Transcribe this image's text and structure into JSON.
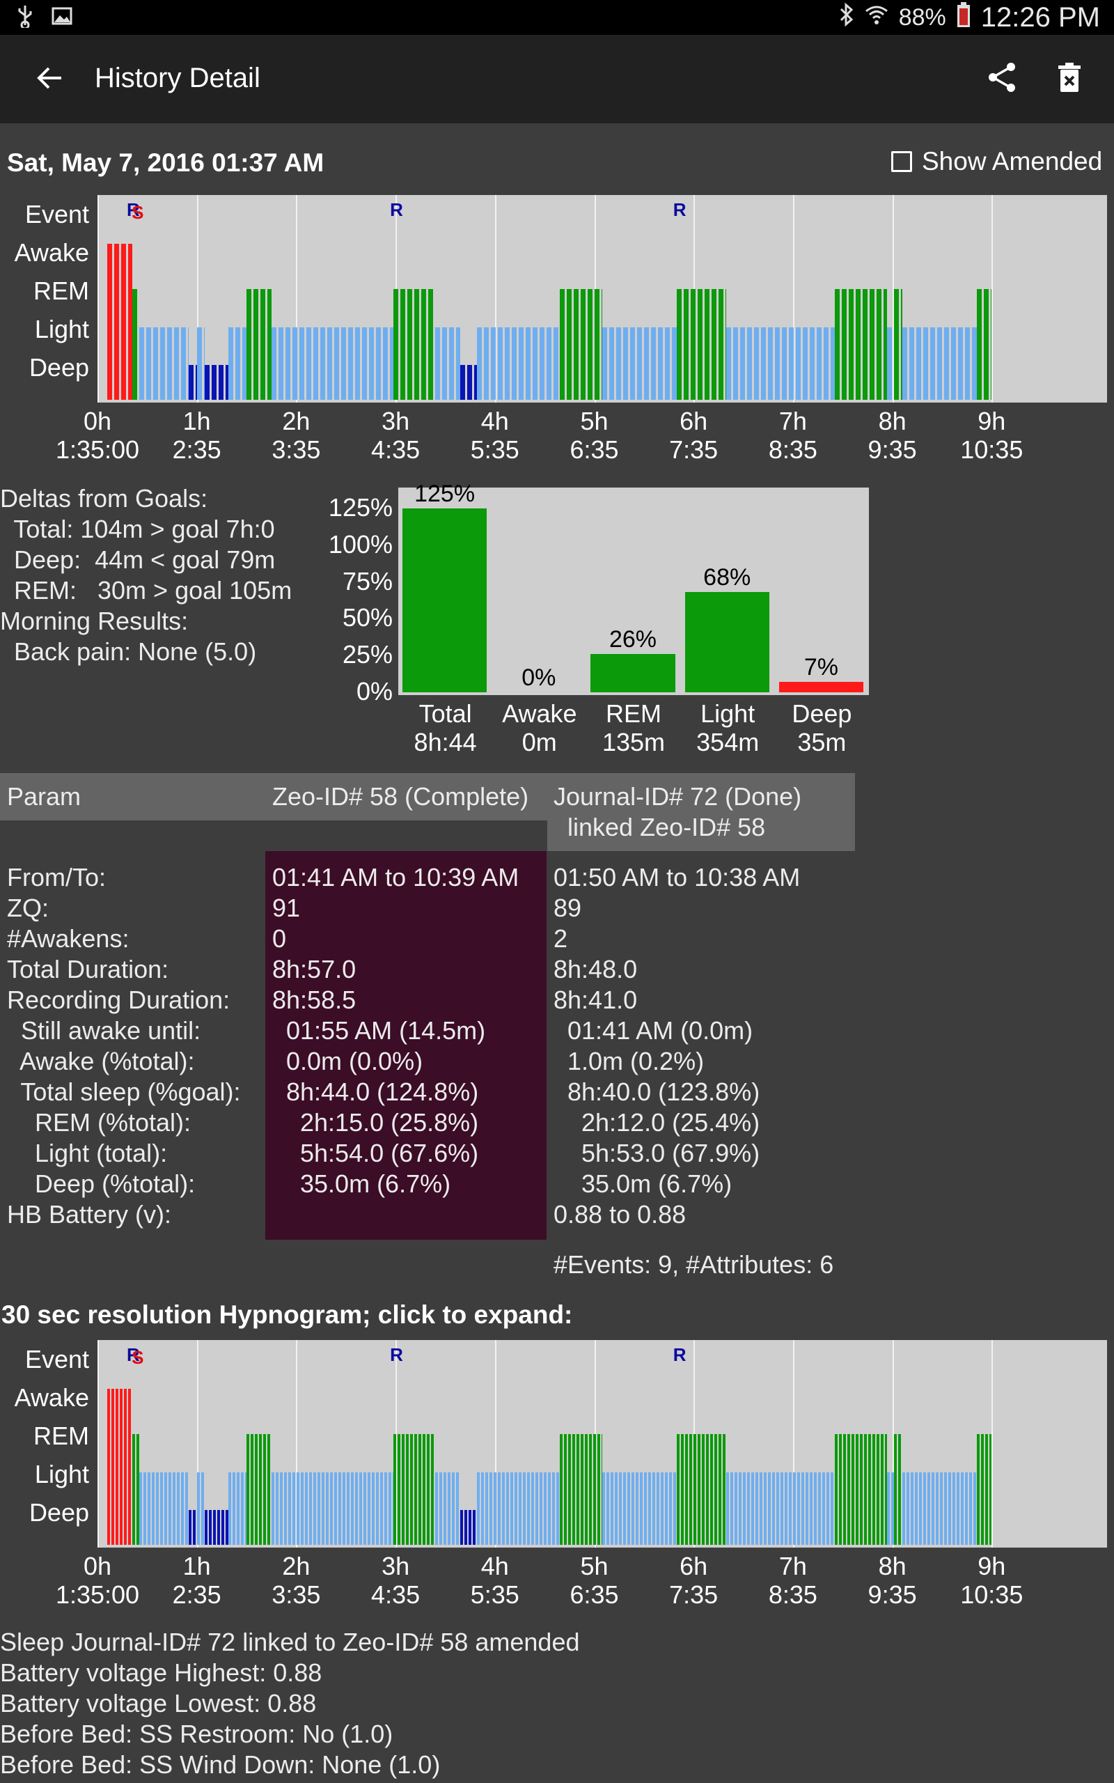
{
  "status_bar": {
    "battery": "88%",
    "time": "12:26 PM",
    "icons": [
      "usb-icon",
      "image-icon",
      "bluetooth-icon",
      "wifi-icon",
      "battery-icon"
    ]
  },
  "app_bar": {
    "title": "History Detail",
    "icons": [
      "back-arrow-icon",
      "share-icon",
      "delete-icon"
    ]
  },
  "header": {
    "date": "Sat, May 7, 2016 01:37 AM",
    "show_amended_label": "Show Amended",
    "show_amended_checked": false
  },
  "hypnogram_rows": [
    "Event",
    "Awake",
    "REM",
    "Light",
    "Deep"
  ],
  "hypnogram_ticks": [
    {
      "h": "0h",
      "t": "1:35:00"
    },
    {
      "h": "1h",
      "t": "2:35"
    },
    {
      "h": "2h",
      "t": "3:35"
    },
    {
      "h": "3h",
      "t": "4:35"
    },
    {
      "h": "4h",
      "t": "5:35"
    },
    {
      "h": "5h",
      "t": "6:35"
    },
    {
      "h": "6h",
      "t": "7:35"
    },
    {
      "h": "7h",
      "t": "8:35"
    },
    {
      "h": "8h",
      "t": "9:35"
    },
    {
      "h": "9h",
      "t": "10:35"
    }
  ],
  "hypnogram_events": [
    {
      "label": "R",
      "color": "#0a0aa0",
      "hour": 0.35
    },
    {
      "label": "S",
      "color": "#e01010",
      "hour": 0.4
    },
    {
      "label": "R",
      "color": "#0a0aa0",
      "hour": 3.0
    },
    {
      "label": "R",
      "color": "#0a0aa0",
      "hour": 5.85
    }
  ],
  "stage_colors": {
    "Awake": "#ff1a1a",
    "REM": "#0a9a0a",
    "Light": "#6eaef0",
    "Deep": "#0a13b4"
  },
  "hypnogram_stages": [
    [
      "Awake",
      0.1,
      0.35
    ],
    [
      "REM",
      0.35,
      0.42
    ],
    [
      "Light",
      0.42,
      0.92
    ],
    [
      "Deep",
      0.92,
      1.0
    ],
    [
      "Light",
      1.0,
      1.08
    ],
    [
      "Deep",
      1.08,
      1.32
    ],
    [
      "Light",
      1.32,
      1.5
    ],
    [
      "REM",
      1.5,
      1.75
    ],
    [
      "Light",
      1.75,
      2.98
    ],
    [
      "REM",
      2.98,
      3.4
    ],
    [
      "Light",
      3.4,
      3.65
    ],
    [
      "Deep",
      3.65,
      3.82
    ],
    [
      "Light",
      3.82,
      4.65
    ],
    [
      "REM",
      4.65,
      5.08
    ],
    [
      "Light",
      5.08,
      5.83
    ],
    [
      "REM",
      5.83,
      6.33
    ],
    [
      "Light",
      6.33,
      7.42
    ],
    [
      "REM",
      7.42,
      7.95
    ],
    [
      "Light",
      7.95,
      8.02
    ],
    [
      "REM",
      8.02,
      8.1
    ],
    [
      "Light",
      8.1,
      8.85
    ],
    [
      "REM",
      8.85,
      9.0
    ]
  ],
  "deltas": {
    "lines": [
      "Deltas from Goals:",
      "  Total: 104m > goal 7h:0",
      "  Deep:  44m < goal 79m",
      "  REM:   30m > goal 105m",
      "Morning Results:",
      "  Back pain: None (5.0)"
    ]
  },
  "chart_data": {
    "type": "bar",
    "categories": [
      "Total",
      "Awake",
      "REM",
      "Light",
      "Deep"
    ],
    "sublabels": [
      "8h:44",
      "0m",
      "135m",
      "354m",
      "35m"
    ],
    "values": [
      125,
      0,
      26,
      68,
      7
    ],
    "value_labels": [
      "125%",
      "0%",
      "26%",
      "68%",
      "7%"
    ],
    "colors": [
      "#0a9a0a",
      "#0a9a0a",
      "#0a9a0a",
      "#0a9a0a",
      "#ff1a1a"
    ],
    "yticks": [
      "125%",
      "100%",
      "75%",
      "50%",
      "25%",
      "0%"
    ],
    "ylim": [
      0,
      125
    ]
  },
  "table": {
    "header_param": "Param",
    "header_zeo": "Zeo-ID# 58 (Complete)",
    "header_journal_1": "Journal-ID# 72 (Done)",
    "header_journal_2": "  linked Zeo-ID# 58",
    "rows": [
      {
        "param": "From/To:",
        "zeo": "01:41 AM to 10:39 AM",
        "journal": "01:50 AM to 10:38 AM"
      },
      {
        "param": "ZQ:",
        "zeo": "91",
        "journal": "89"
      },
      {
        "param": "#Awakens:",
        "zeo": "0",
        "journal": "2"
      },
      {
        "param": "Total Duration:",
        "zeo": "8h:57.0",
        "journal": "8h:48.0"
      },
      {
        "param": "Recording Duration:",
        "zeo": "8h:58.5",
        "journal": "8h:41.0"
      },
      {
        "param": "  Still awake until:",
        "zeo": "  01:55 AM (14.5m)",
        "journal": "  01:41 AM (0.0m)"
      },
      {
        "param": "  Awake (%total):",
        "zeo": "  0.0m (0.0%)",
        "journal": "  1.0m (0.2%)"
      },
      {
        "param": "  Total sleep (%goal):",
        "zeo": "  8h:44.0 (124.8%)",
        "journal": "  8h:40.0 (123.8%)"
      },
      {
        "param": "    REM (%total):",
        "zeo": "    2h:15.0 (25.8%)",
        "journal": "    2h:12.0 (25.4%)"
      },
      {
        "param": "    Light (total):",
        "zeo": "    5h:54.0 (67.6%)",
        "journal": "    5h:53.0 (67.9%)"
      },
      {
        "param": "    Deep (%total):",
        "zeo": "    35.0m (6.7%)",
        "journal": "    35.0m (6.7%)"
      },
      {
        "param": "HB Battery (v):",
        "zeo": "",
        "journal": "0.88 to 0.88"
      }
    ],
    "events_summary": "#Events: 9, #Attributes: 6"
  },
  "hypnogram2_title": "30 sec resolution Hypnogram; click to expand:",
  "footer_lines": [
    "Sleep Journal-ID# 72 linked to Zeo-ID# 58 amended",
    "Battery voltage Highest: 0.88",
    "Battery voltage Lowest: 0.88",
    "Before Bed: SS Restroom: No (1.0)",
    "Before Bed: SS Wind Down: None (1.0)"
  ]
}
